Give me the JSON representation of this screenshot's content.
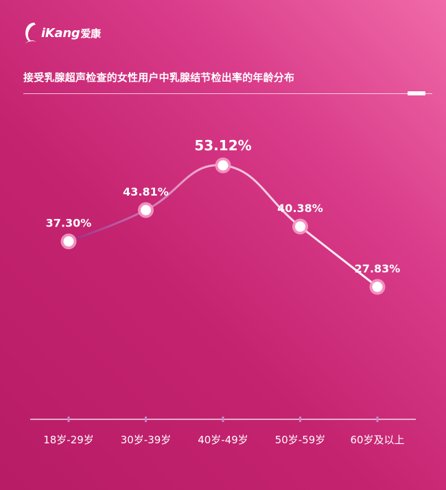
{
  "brand": {
    "logo_text": "iKang",
    "logo_cn": "爱康"
  },
  "colors": {
    "background_start": "#f06aa8",
    "background_end": "#b81c66",
    "line": "#f2b3d6",
    "marker_fill": "#ffffff",
    "marker_ring": "#f59ac6",
    "text": "#ffffff"
  },
  "chart_data": {
    "type": "line",
    "title": "接受乳腺超声检查的女性用户中乳腺结节检出率的年龄分布",
    "categories": [
      "18岁-29岁",
      "30岁-39岁",
      "40岁-49岁",
      "50岁-59岁",
      "60岁及以上"
    ],
    "values": [
      37.3,
      43.81,
      53.12,
      40.38,
      27.83
    ],
    "value_labels": [
      "37.30%",
      "43.81%",
      "53.12%",
      "40.38%",
      "27.83%"
    ],
    "unit": "%",
    "highlight_index": 2,
    "smooth": true,
    "grid": false,
    "legend": "none"
  }
}
